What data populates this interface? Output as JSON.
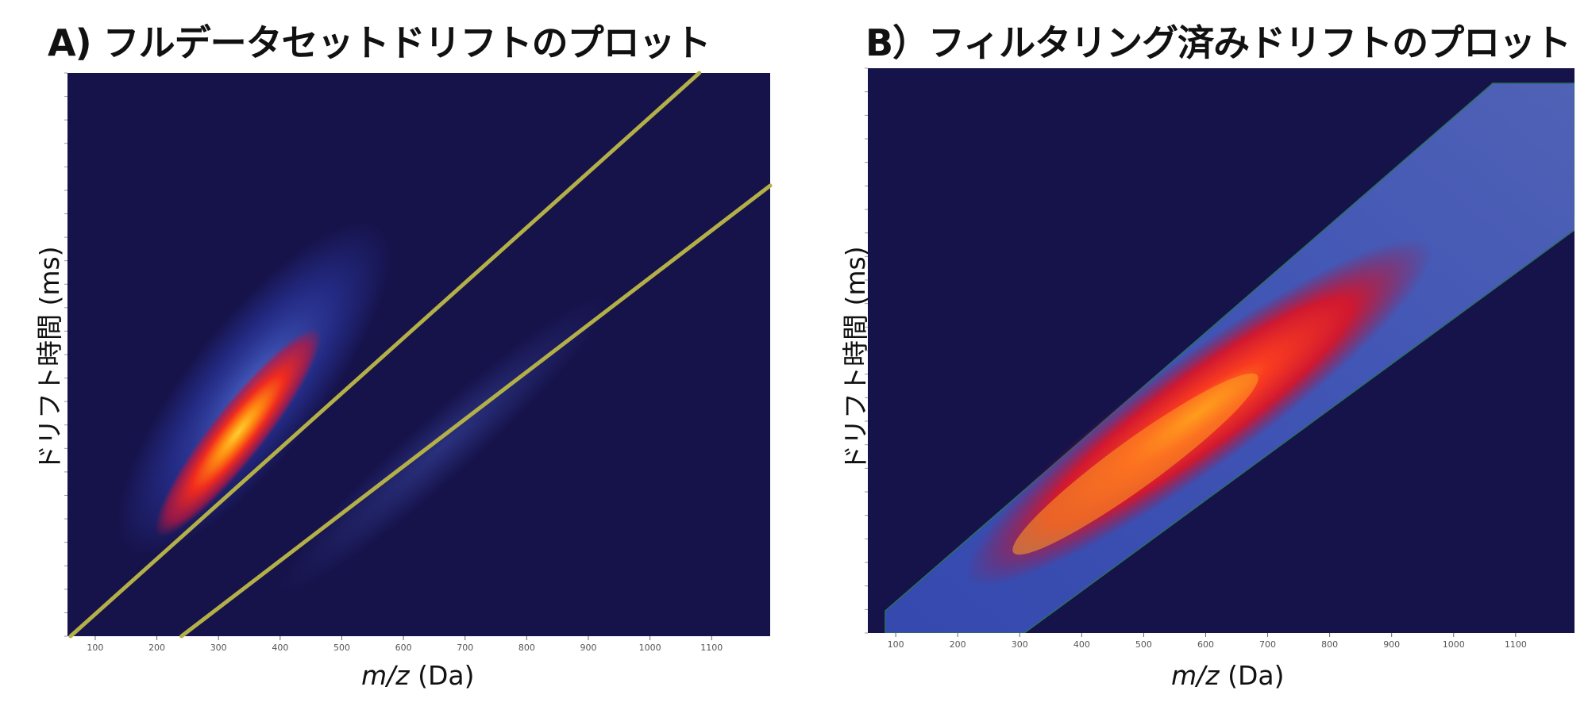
{
  "chart_data": [
    {
      "type": "heatmap",
      "title": "A) フルデータセットドリフトのプロット",
      "xlabel_italic": "m/z",
      "xlabel_unit": "(Da)",
      "ylabel": "ドリフト時間 (ms)",
      "x_ticks": [
        "100",
        "200",
        "300",
        "400",
        "500",
        "600",
        "700",
        "800",
        "900",
        "1000",
        "1100"
      ],
      "xlim": [
        55,
        1195
      ],
      "annotations": [
        {
          "type": "line",
          "color": "#b3b048",
          "from": [
            60,
            0
          ],
          "to": [
            1080,
            1
          ]
        },
        {
          "type": "line",
          "color": "#b3b048",
          "from": [
            240,
            0
          ],
          "to": [
            1195,
            0.8
          ]
        }
      ],
      "colormap": [
        "#16124a",
        "#2c3aa8",
        "#4f6ad0",
        "#c0153c",
        "#f02a1e",
        "#ff8a10",
        "#ffd030"
      ]
    },
    {
      "type": "heatmap",
      "title": "B）フィルタリング済みドリフトのプロット",
      "xlabel_italic": "m/z",
      "xlabel_unit": "(Da)",
      "ylabel": "ドリフト時間 (ms)",
      "x_ticks": [
        "100",
        "200",
        "300",
        "400",
        "500",
        "600",
        "700",
        "800",
        "900",
        "1000",
        "1100"
      ],
      "xlim": [
        55,
        1195
      ],
      "colormap": [
        "#16124a",
        "#2c3aa8",
        "#4f6ad0",
        "#c0153c",
        "#f02a1e",
        "#ff8a10",
        "#ffd030"
      ]
    }
  ]
}
